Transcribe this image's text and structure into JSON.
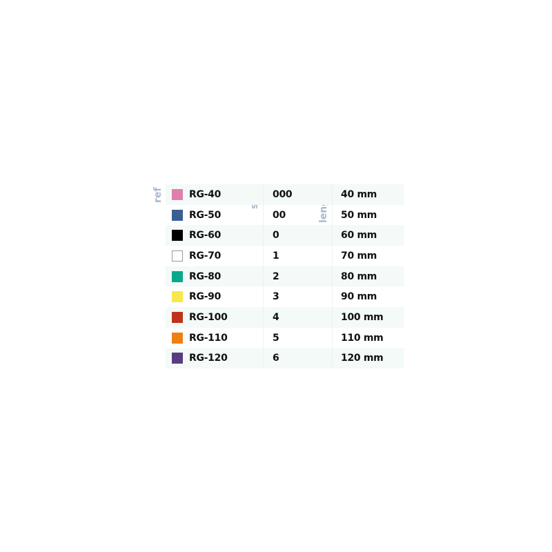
{
  "headers": {
    "ref": "ref",
    "size": "size",
    "length": "lenght"
  },
  "rows": [
    {
      "ref": "RG-40",
      "size": "000",
      "length": "40 mm",
      "color": "#e07fae"
    },
    {
      "ref": "RG-50",
      "size": "00",
      "length": "50 mm",
      "color": "#3a5f92"
    },
    {
      "ref": "RG-60",
      "size": "0",
      "length": "60 mm",
      "color": "#000000"
    },
    {
      "ref": "RG-70",
      "size": "1",
      "length": "70 mm",
      "color": "#ffffff"
    },
    {
      "ref": "RG-80",
      "size": "2",
      "length": "80 mm",
      "color": "#0aa88c"
    },
    {
      "ref": "RG-90",
      "size": "3",
      "length": "90 mm",
      "color": "#f8e84a"
    },
    {
      "ref": "RG-100",
      "size": "4",
      "length": "100 mm",
      "color": "#c0321a"
    },
    {
      "ref": "RG-110",
      "size": "5",
      "length": "110 mm",
      "color": "#ef7f12"
    },
    {
      "ref": "RG-120",
      "size": "6",
      "length": "120 mm",
      "color": "#583d80"
    }
  ]
}
